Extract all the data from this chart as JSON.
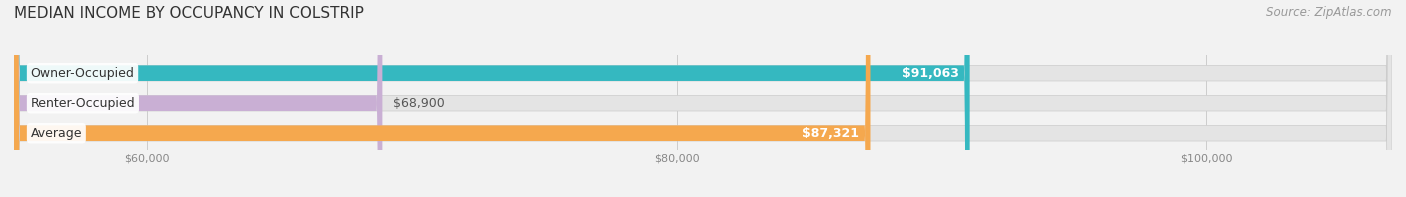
{
  "title": "MEDIAN INCOME BY OCCUPANCY IN COLSTRIP",
  "source": "Source: ZipAtlas.com",
  "categories": [
    "Owner-Occupied",
    "Renter-Occupied",
    "Average"
  ],
  "values": [
    91063,
    68900,
    87321
  ],
  "labels": [
    "$91,063",
    "$68,900",
    "$87,321"
  ],
  "bar_colors": [
    "#35b8c0",
    "#c9afd4",
    "#f5a84e"
  ],
  "bar_edge_colors": [
    "#2aa0a8",
    "#b89cc2",
    "#e8963c"
  ],
  "xmin": 55000,
  "xmax": 107000,
  "xticks": [
    60000,
    80000,
    100000
  ],
  "xtick_labels": [
    "$60,000",
    "$80,000",
    "$100,000"
  ],
  "title_fontsize": 11,
  "source_fontsize": 8.5,
  "label_fontsize": 9,
  "bar_height": 0.52,
  "background_color": "#f2f2f2",
  "bar_bg_color": "#e4e4e4"
}
